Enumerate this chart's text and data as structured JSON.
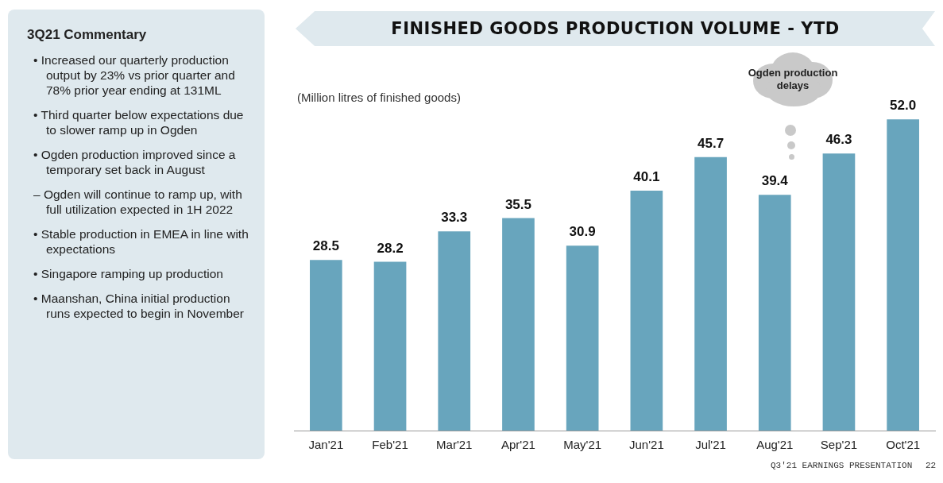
{
  "chart_data": [
    {
      "type": "other",
      "title": "3Q21 Commentary",
      "annotations": [
        "• Increased our quarterly production output by 23% vs prior quarter and 78% prior year ending at 131ML",
        "• Third quarter below expectations due to slower ramp up in Ogden",
        "• Ogden production improved since a temporary set back in August",
        "– Ogden will continue to ramp up, with full utilization expected in 1H 2022",
        "• Stable production in EMEA in line with expectations",
        "• Singapore ramping up production",
        "• Maanshan, China initial production runs expected to begin in November"
      ]
    },
    {
      "type": "bar",
      "title": "FINISHED GOODS PRODUCTION VOLUME - YTD",
      "ylabel": "(Million litres of finished goods)",
      "categories": [
        "Jan'21",
        "Feb'21",
        "Mar'21",
        "Apr'21",
        "May'21",
        "Jun'21",
        "Jul'21",
        "Aug'21",
        "Sep'21",
        "Oct'21"
      ],
      "values": [
        28.5,
        28.2,
        33.3,
        35.5,
        30.9,
        40.1,
        45.7,
        39.4,
        46.3,
        52.0
      ],
      "value_labels": [
        "28.5",
        "28.2",
        "33.3",
        "35.5",
        "30.9",
        "40.1",
        "45.7",
        "39.4",
        "46.3",
        "52.0"
      ],
      "color": "#68a5bd",
      "grid": false,
      "legend": false,
      "annotations": [
        "Ogden production delays",
        "Q3'21 EARNINGS PRESENTATION",
        "22"
      ]
    }
  ]
}
